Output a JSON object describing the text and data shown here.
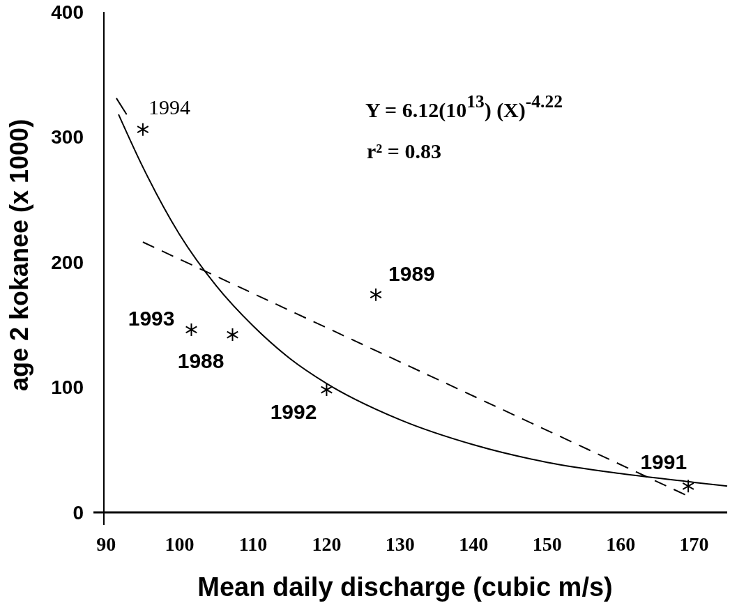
{
  "chart_data": {
    "type": "scatter",
    "xlabel": "Mean daily discharge (cubic m/s)",
    "ylabel": "age 2 kokanee (x 1000)",
    "xlim": [
      89.7,
      174.5
    ],
    "ylim": [
      0,
      400
    ],
    "xticks": [
      90,
      100,
      110,
      120,
      130,
      140,
      150,
      160,
      170
    ],
    "yticks": [
      0,
      100,
      200,
      300,
      400
    ],
    "grid": false,
    "series": [
      {
        "color": "#000000",
        "marker": "cross",
        "x": [
          95.0,
          101.6,
          107.2,
          120.0,
          126.7,
          169.2
        ],
        "values": [
          306,
          146,
          142,
          98,
          174,
          21
        ]
      },
      {
        "type": "line",
        "color": "#000000",
        "line_style": "solid",
        "x": [
          91.7,
          95,
          100,
          105,
          110,
          115,
          120,
          130,
          140,
          150,
          160,
          170,
          174.5
        ],
        "values": [
          318,
          276,
          222,
          181,
          149,
          123,
          103,
          74,
          54,
          40,
          31,
          24,
          21
        ]
      },
      {
        "type": "line",
        "color": "#000000",
        "line_style": "dashed",
        "x": [
          95.0,
          169.2
        ],
        "values": [
          216,
          13
        ]
      },
      {
        "type": "line",
        "color": "#000000",
        "line_style": "solid",
        "x": [
          91.4,
          92.8
        ],
        "values": [
          331,
          318
        ]
      }
    ],
    "annotations": [
      {
        "text": "1994",
        "x": 95.0,
        "y": 306
      },
      {
        "text": "1993",
        "x": 101.6,
        "y": 146
      },
      {
        "text": "1988",
        "x": 107.2,
        "y": 142
      },
      {
        "text": "1992",
        "x": 120.0,
        "y": 98
      },
      {
        "text": "1989",
        "x": 126.7,
        "y": 174
      },
      {
        "text": "1991",
        "x": 169.2,
        "y": 21
      },
      "Y = 6.12(10$^{13}$) (X)$^{-4.22}$",
      "r² = 0.83"
    ]
  }
}
